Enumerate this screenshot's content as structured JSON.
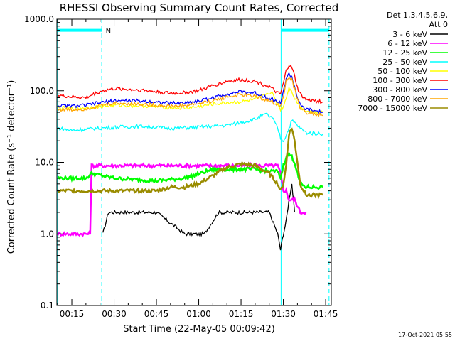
{
  "chart_data": {
    "type": "line",
    "title": "RHESSI Observing Summary Count Rates, Corrected",
    "xlabel": "Start Time (22-May-05 00:09:42)",
    "ylabel": "Corrected Count Rate (s⁻¹ detector⁻¹)",
    "x_unit": "minutes of day (UT)",
    "x_ticks": [
      {
        "value": 15,
        "label": "00:15"
      },
      {
        "value": 30,
        "label": "00:30"
      },
      {
        "value": 45,
        "label": "00:45"
      },
      {
        "value": 60,
        "label": "01:00"
      },
      {
        "value": 75,
        "label": "01:15"
      },
      {
        "value": 90,
        "label": "01:30"
      },
      {
        "value": 105,
        "label": "01:45"
      }
    ],
    "xlim": [
      9.7,
      107
    ],
    "y_scale": "log",
    "ylim": [
      0.1,
      1000
    ],
    "y_ticks": [
      {
        "value": 0.1,
        "label": "0.1"
      },
      {
        "value": 1,
        "label": "1.0"
      },
      {
        "value": 10,
        "label": "10.0"
      },
      {
        "value": 100,
        "label": "100.0"
      },
      {
        "value": 1000,
        "label": "1000.0"
      }
    ],
    "legend": {
      "placement": "right",
      "header": [
        "Det 1,3,4,5,6,9,",
        "Att 0"
      ]
    },
    "grid": false,
    "series": [
      {
        "name": "3 - 6 keV",
        "color": "#000000",
        "x": [
          26,
          28,
          35,
          45,
          55,
          62,
          67,
          72,
          78,
          85,
          88,
          89,
          90,
          91,
          92,
          93,
          94
        ],
        "y": [
          1.0,
          2.0,
          2.0,
          2.0,
          1.0,
          1.0,
          2.0,
          2.0,
          2.0,
          2.0,
          1.0,
          0.6,
          1.0,
          1.5,
          3.0,
          5.0,
          2.0
        ]
      },
      {
        "name": "6 - 12 keV",
        "color": "#ff00ff",
        "x": [
          10,
          20,
          21.5,
          22,
          25,
          35,
          45,
          60,
          75,
          85,
          88,
          89,
          90,
          91,
          92,
          93,
          94,
          96,
          98
        ],
        "y": [
          1.0,
          1.0,
          1.0,
          9.0,
          9.0,
          9.0,
          9.0,
          9.0,
          9.0,
          9.0,
          9.0,
          7.0,
          4.0,
          4.0,
          3.0,
          3.0,
          3.0,
          2.0,
          2.0
        ]
      },
      {
        "name": "12 - 25 keV",
        "color": "#00ff00",
        "x": [
          10,
          15,
          20,
          22,
          30,
          45,
          55,
          65,
          75,
          80,
          85,
          88,
          89,
          90,
          91,
          92,
          93,
          94,
          95,
          96,
          98,
          104
        ],
        "y": [
          6.0,
          6.0,
          6.0,
          7.0,
          6.0,
          5.5,
          6.0,
          8.0,
          8.0,
          8.0,
          7.5,
          7.5,
          6.0,
          9.0,
          12.0,
          13.0,
          12.0,
          10.0,
          7.0,
          5.0,
          4.5,
          4.5
        ]
      },
      {
        "name": "25 - 50 keV",
        "color": "#00ffff",
        "x": [
          10,
          15,
          20,
          25,
          30,
          40,
          50,
          60,
          70,
          75,
          80,
          82,
          84,
          86,
          88,
          89,
          90,
          91,
          92,
          93,
          94,
          96,
          98,
          104
        ],
        "y": [
          30,
          28,
          29,
          30,
          31,
          32,
          30,
          31,
          33,
          36,
          40,
          44,
          47,
          42,
          30,
          22,
          20,
          24,
          30,
          38,
          36,
          30,
          26,
          25
        ]
      },
      {
        "name": "50 - 100 keV",
        "color": "#ffff00",
        "x": [
          10,
          15,
          20,
          25,
          30,
          40,
          50,
          55,
          60,
          65,
          70,
          75,
          80,
          83,
          85,
          86,
          88,
          89,
          90,
          91,
          92,
          93,
          94,
          96,
          98,
          104
        ],
        "y": [
          58,
          56,
          58,
          60,
          63,
          62,
          58,
          57,
          60,
          65,
          68,
          70,
          75,
          85,
          95,
          92,
          65,
          55,
          60,
          80,
          110,
          100,
          78,
          60,
          52,
          50
        ]
      },
      {
        "name": "100 - 300 keV",
        "color": "#ff0000",
        "x": [
          10,
          15,
          20,
          25,
          30,
          40,
          50,
          55,
          60,
          65,
          70,
          75,
          80,
          85,
          88,
          89,
          90,
          91,
          92,
          93,
          94,
          95,
          96,
          98,
          104
        ],
        "y": [
          86,
          82,
          80,
          98,
          107,
          102,
          92,
          94,
          100,
          118,
          135,
          143,
          135,
          115,
          92,
          90,
          125,
          190,
          230,
          210,
          160,
          110,
          90,
          75,
          70
        ]
      },
      {
        "name": "300 - 800 keV",
        "color": "#0000ff",
        "x": [
          10,
          15,
          20,
          25,
          30,
          40,
          50,
          55,
          60,
          65,
          70,
          75,
          80,
          85,
          88,
          89,
          90,
          91,
          92,
          93,
          94,
          95,
          96,
          98,
          104
        ],
        "y": [
          62,
          61,
          63,
          68,
          73,
          72,
          67,
          68,
          72,
          80,
          90,
          97,
          93,
          79,
          70,
          68,
          95,
          150,
          170,
          155,
          115,
          80,
          62,
          55,
          50
        ]
      },
      {
        "name": "800 - 7000 keV",
        "color": "#ffa500",
        "x": [
          10,
          15,
          20,
          25,
          30,
          40,
          50,
          55,
          60,
          65,
          70,
          75,
          80,
          85,
          88,
          89,
          90,
          91,
          92,
          93,
          94,
          95,
          96,
          98,
          104
        ],
        "y": [
          55,
          54,
          56,
          62,
          67,
          65,
          61,
          62,
          66,
          73,
          82,
          88,
          84,
          72,
          64,
          62,
          85,
          135,
          152,
          140,
          105,
          74,
          58,
          50,
          45
        ]
      },
      {
        "name": "7000 - 15000 keV",
        "color": "#9a8c00",
        "x": [
          10,
          15,
          20,
          25,
          30,
          40,
          45,
          50,
          55,
          60,
          65,
          70,
          75,
          80,
          85,
          88,
          89,
          90,
          91,
          92,
          93,
          94,
          95,
          96,
          98,
          104
        ],
        "y": [
          4.0,
          4.0,
          4.0,
          4.0,
          4.0,
          4.0,
          4.0,
          4.5,
          4.5,
          5.0,
          6.5,
          8.5,
          9.5,
          9.0,
          7.0,
          5.0,
          4.0,
          5.0,
          9.0,
          25.0,
          30.0,
          20.0,
          10.0,
          5.0,
          3.5,
          3.5
        ]
      }
    ],
    "markers": {
      "color": "#00ffff",
      "solid_vlines_x": [
        9.8,
        89.2
      ],
      "dashed_vlines_x": [
        25.6,
        106.2
      ],
      "attenuator_bars": [
        {
          "x_start": 9.8,
          "x_end": 25.6,
          "y": 700
        },
        {
          "x_start": 89.2,
          "x_end": 106.2,
          "y": 700
        }
      ],
      "flag_labels": [
        {
          "x": 27,
          "y": 700,
          "text": "N"
        }
      ]
    },
    "timestamp": "17-Oct-2021 05:55"
  }
}
